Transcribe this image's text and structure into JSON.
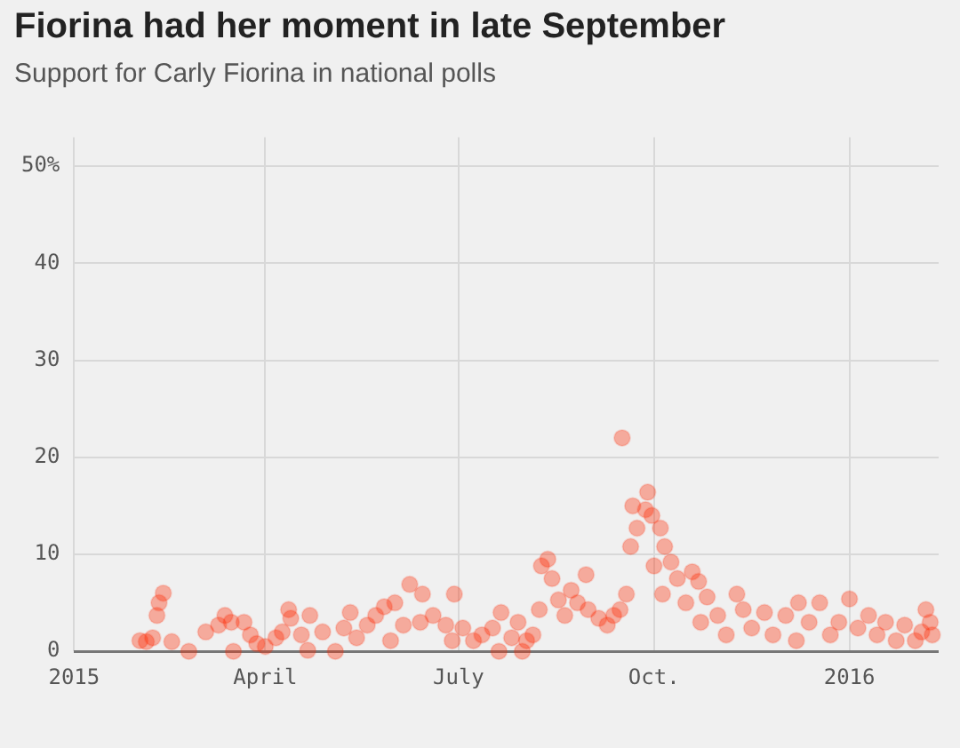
{
  "chart_data": {
    "type": "scatter",
    "title": "Fiorina had her moment in late September",
    "subtitle": "Support for Carly Fiorina in national polls",
    "x": [
      "2015-02-01",
      "2015-02-04",
      "2015-02-07",
      "2015-02-09",
      "2015-02-10",
      "2015-02-12",
      "2015-02-16",
      "2015-02-24",
      "2015-03-04",
      "2015-03-10",
      "2015-03-13",
      "2015-03-16",
      "2015-03-17",
      "2015-03-22",
      "2015-03-25",
      "2015-03-28",
      "2015-04-01",
      "2015-04-06",
      "2015-04-09",
      "2015-04-12",
      "2015-04-13",
      "2015-04-18",
      "2015-04-21",
      "2015-04-22",
      "2015-04-28",
      "2015-05-04",
      "2015-05-08",
      "2015-05-11",
      "2015-05-14",
      "2015-05-19",
      "2015-05-23",
      "2015-05-27",
      "2015-05-30",
      "2015-06-01",
      "2015-06-05",
      "2015-06-08",
      "2015-06-13",
      "2015-06-14",
      "2015-06-19",
      "2015-06-25",
      "2015-06-28",
      "2015-06-29",
      "2015-07-03",
      "2015-07-08",
      "2015-07-12",
      "2015-07-17",
      "2015-07-20",
      "2015-07-21",
      "2015-07-26",
      "2015-07-29",
      "2015-07-31",
      "2015-08-02",
      "2015-08-05",
      "2015-08-08",
      "2015-08-09",
      "2015-08-12",
      "2015-08-14",
      "2015-08-17",
      "2015-08-20",
      "2015-08-23",
      "2015-08-26",
      "2015-08-30",
      "2015-08-31",
      "2015-09-05",
      "2015-09-09",
      "2015-09-12",
      "2015-09-15",
      "2015-09-16",
      "2015-09-18",
      "2015-09-20",
      "2015-09-21",
      "2015-09-23",
      "2015-09-27",
      "2015-09-28",
      "2015-09-30",
      "2015-10-01",
      "2015-10-04",
      "2015-10-05",
      "2015-10-06",
      "2015-10-09",
      "2015-10-12",
      "2015-10-16",
      "2015-10-19",
      "2015-10-22",
      "2015-10-23",
      "2015-10-26",
      "2015-10-31",
      "2015-11-04",
      "2015-11-09",
      "2015-11-12",
      "2015-11-16",
      "2015-11-22",
      "2015-11-26",
      "2015-12-02",
      "2015-12-07",
      "2015-12-08",
      "2015-12-13",
      "2015-12-18",
      "2015-12-23",
      "2015-12-27",
      "2016-01-01",
      "2016-01-05",
      "2016-01-10",
      "2016-01-14",
      "2016-01-18",
      "2016-01-23",
      "2016-01-27",
      "2016-02-01",
      "2016-02-04",
      "2016-02-06",
      "2016-02-08",
      "2016-02-09"
    ],
    "series": [
      {
        "color": "#ff2700",
        "values": [
          1.1,
          1,
          1.4,
          3.7,
          5,
          6,
          1,
          0,
          2,
          2.7,
          3.7,
          3,
          0,
          3,
          1.7,
          0.8,
          0.5,
          1.4,
          2,
          4.3,
          3.4,
          1.7,
          0.1,
          3.7,
          2,
          0,
          2.4,
          4,
          1.4,
          2.7,
          3.7,
          4.6,
          1.1,
          5,
          2.7,
          6.9,
          3,
          5.9,
          3.7,
          2.7,
          1.1,
          5.9,
          2.4,
          1.1,
          1.7,
          2.4,
          0,
          4,
          1.4,
          3,
          0,
          1.1,
          1.7,
          4.3,
          8.8,
          9.5,
          7.5,
          5.3,
          3.7,
          6.3,
          5,
          7.9,
          4.3,
          3.4,
          2.7,
          3.7,
          4.3,
          22,
          5.9,
          10.8,
          15,
          12.7,
          14.6,
          16.4,
          14,
          8.8,
          12.7,
          5.9,
          10.8,
          9.2,
          7.5,
          5,
          8.2,
          7.2,
          3,
          5.6,
          3.7,
          1.7,
          5.9,
          4.3,
          2.4,
          4,
          1.7,
          3.7,
          1.1,
          5,
          3,
          5,
          1.7,
          3,
          5.4,
          2.4,
          3.7,
          1.7,
          3,
          1.1,
          2.7,
          1.1,
          2,
          4.3,
          3,
          1.7
        ]
      }
    ],
    "xlim": [
      "2015-01-01",
      "2016-02-12"
    ],
    "xticks": [
      {
        "value": "2015-01-01",
        "label": "2015"
      },
      {
        "value": "2015-04-01",
        "label": "April"
      },
      {
        "value": "2015-07-01",
        "label": "July"
      },
      {
        "value": "2015-10-01",
        "label": "Oct."
      },
      {
        "value": "2016-01-01",
        "label": "2016"
      }
    ],
    "ylim": [
      0,
      53
    ],
    "yticks": [
      0,
      10,
      20,
      30,
      40,
      {
        "value": 50,
        "label": "50%"
      }
    ],
    "grid": true,
    "legend": false,
    "marker": "circle"
  }
}
